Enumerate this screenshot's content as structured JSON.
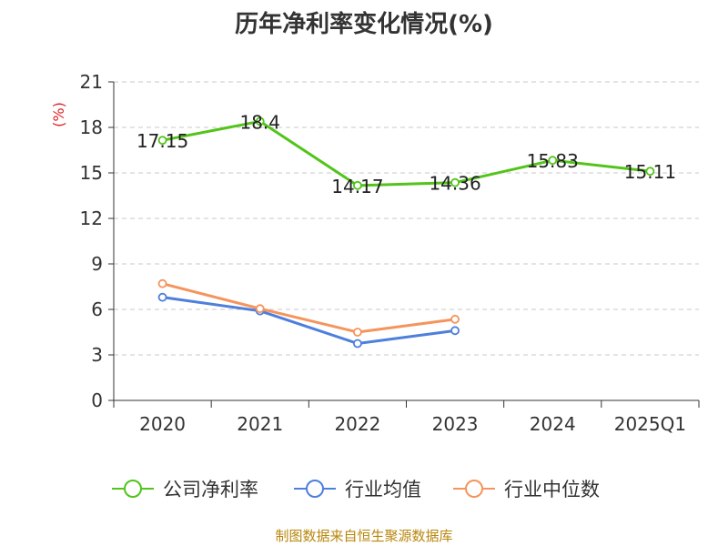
{
  "chart_data": {
    "type": "line",
    "title": "历年净利率变化情况(%)",
    "ylabel": "(%)",
    "xlabel": "",
    "categories": [
      "2020",
      "2021",
      "2022",
      "2023",
      "2024",
      "2025Q1"
    ],
    "ylim": [
      0,
      21
    ],
    "yticks": [
      0,
      3,
      6,
      9,
      12,
      15,
      18,
      21
    ],
    "grid": true,
    "legend_position": "bottom",
    "series": [
      {
        "name": "公司净利率",
        "color": "#52c41a",
        "values": [
          17.15,
          18.4,
          14.17,
          14.36,
          15.83,
          15.11
        ],
        "labels": [
          "17.15",
          "18.4",
          "14.17",
          "14.36",
          "15.83",
          "15.11"
        ]
      },
      {
        "name": "行业均值",
        "color": "#4e7fdc",
        "values": [
          6.8,
          5.9,
          3.75,
          4.6,
          null,
          null
        ]
      },
      {
        "name": "行业中位数",
        "color": "#f5945c",
        "values": [
          7.7,
          6.05,
          4.5,
          5.35,
          null,
          null
        ]
      }
    ]
  },
  "source": "制图数据来自恒生聚源数据库"
}
